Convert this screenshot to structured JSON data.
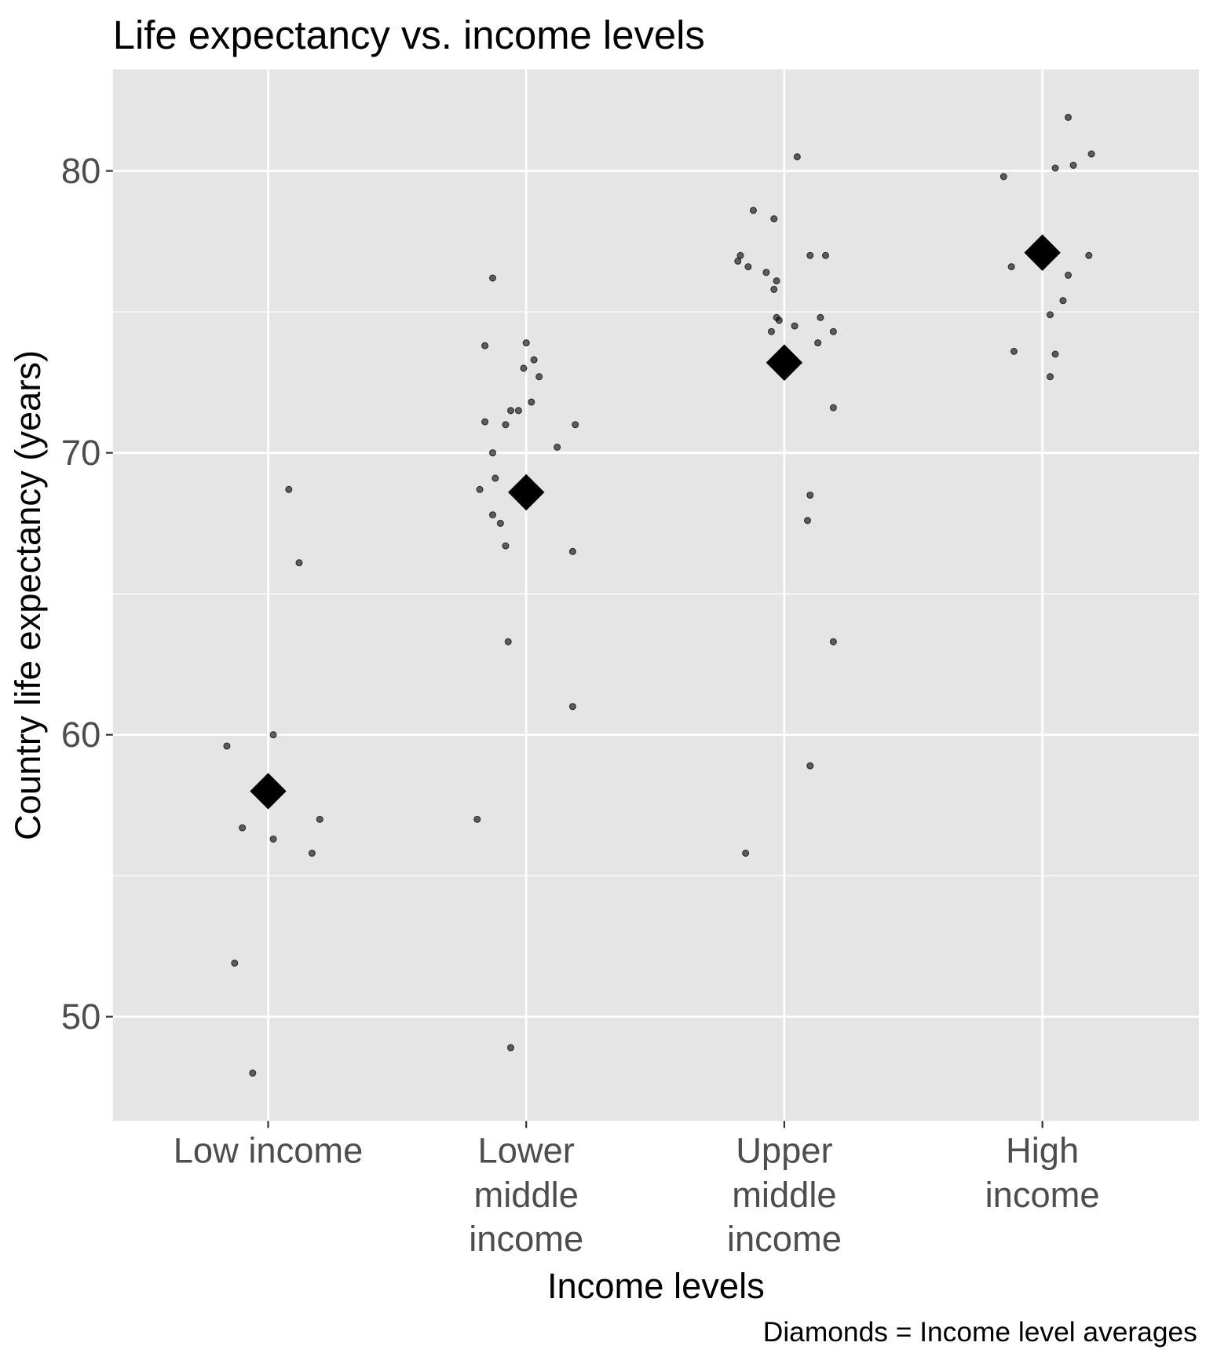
{
  "chart_data": {
    "type": "scatter",
    "title": "Life expectancy vs. income levels",
    "xlabel": "Income levels",
    "ylabel": "Country life expectancy (years)",
    "caption": "Diamonds = Income level averages",
    "categories": [
      {
        "lines": [
          "Low income"
        ]
      },
      {
        "lines": [
          "Lower",
          "middle",
          "income"
        ]
      },
      {
        "lines": [
          "Upper",
          "middle",
          "income"
        ]
      },
      {
        "lines": [
          "High",
          "income"
        ]
      }
    ],
    "ylim": [
      46.3,
      83.6
    ],
    "yticks": [
      50,
      60,
      70,
      80
    ],
    "yminor": [
      55,
      65,
      75
    ],
    "grid": true,
    "colors": {
      "panel": "#e5e5e5",
      "grid": "#ffffff",
      "point": "#000000"
    },
    "points": [
      {
        "cat": 0,
        "jitter": -0.16,
        "y": 59.6
      },
      {
        "cat": 0,
        "jitter": 0.02,
        "y": 60.0
      },
      {
        "cat": 0,
        "jitter": -0.1,
        "y": 56.7
      },
      {
        "cat": 0,
        "jitter": 0.02,
        "y": 56.3
      },
      {
        "cat": 0,
        "jitter": 0.2,
        "y": 57.0
      },
      {
        "cat": 0,
        "jitter": 0.17,
        "y": 55.8
      },
      {
        "cat": 0,
        "jitter": 0.08,
        "y": 68.7
      },
      {
        "cat": 0,
        "jitter": 0.12,
        "y": 66.1
      },
      {
        "cat": 0,
        "jitter": -0.13,
        "y": 51.9
      },
      {
        "cat": 0,
        "jitter": -0.06,
        "y": 48.0
      },
      {
        "cat": 1,
        "jitter": -0.13,
        "y": 76.2
      },
      {
        "cat": 1,
        "jitter": -0.16,
        "y": 73.8
      },
      {
        "cat": 1,
        "jitter": 0.0,
        "y": 73.9
      },
      {
        "cat": 1,
        "jitter": 0.03,
        "y": 73.3
      },
      {
        "cat": 1,
        "jitter": -0.01,
        "y": 73.0
      },
      {
        "cat": 1,
        "jitter": 0.05,
        "y": 72.7
      },
      {
        "cat": 1,
        "jitter": 0.02,
        "y": 71.8
      },
      {
        "cat": 1,
        "jitter": -0.06,
        "y": 71.5
      },
      {
        "cat": 1,
        "jitter": -0.03,
        "y": 71.5
      },
      {
        "cat": 1,
        "jitter": -0.16,
        "y": 71.1
      },
      {
        "cat": 1,
        "jitter": -0.08,
        "y": 71.0
      },
      {
        "cat": 1,
        "jitter": 0.19,
        "y": 71.0
      },
      {
        "cat": 1,
        "jitter": 0.12,
        "y": 70.2
      },
      {
        "cat": 1,
        "jitter": -0.13,
        "y": 70.0
      },
      {
        "cat": 1,
        "jitter": -0.12,
        "y": 69.1
      },
      {
        "cat": 1,
        "jitter": -0.18,
        "y": 68.7
      },
      {
        "cat": 1,
        "jitter": -0.13,
        "y": 67.8
      },
      {
        "cat": 1,
        "jitter": -0.1,
        "y": 67.5
      },
      {
        "cat": 1,
        "jitter": -0.08,
        "y": 66.7
      },
      {
        "cat": 1,
        "jitter": 0.18,
        "y": 66.5
      },
      {
        "cat": 1,
        "jitter": -0.07,
        "y": 63.3
      },
      {
        "cat": 1,
        "jitter": 0.18,
        "y": 61.0
      },
      {
        "cat": 1,
        "jitter": -0.19,
        "y": 57.0
      },
      {
        "cat": 1,
        "jitter": -0.06,
        "y": 48.9
      },
      {
        "cat": 2,
        "jitter": 0.05,
        "y": 80.5
      },
      {
        "cat": 2,
        "jitter": -0.12,
        "y": 78.6
      },
      {
        "cat": 2,
        "jitter": -0.04,
        "y": 78.3
      },
      {
        "cat": 2,
        "jitter": -0.17,
        "y": 77.0
      },
      {
        "cat": 2,
        "jitter": -0.18,
        "y": 76.8
      },
      {
        "cat": 2,
        "jitter": -0.14,
        "y": 76.6
      },
      {
        "cat": 2,
        "jitter": 0.1,
        "y": 77.0
      },
      {
        "cat": 2,
        "jitter": 0.16,
        "y": 77.0
      },
      {
        "cat": 2,
        "jitter": -0.07,
        "y": 76.4
      },
      {
        "cat": 2,
        "jitter": -0.03,
        "y": 76.1
      },
      {
        "cat": 2,
        "jitter": -0.04,
        "y": 75.8
      },
      {
        "cat": 2,
        "jitter": -0.03,
        "y": 74.8
      },
      {
        "cat": 2,
        "jitter": -0.02,
        "y": 74.7
      },
      {
        "cat": 2,
        "jitter": 0.14,
        "y": 74.8
      },
      {
        "cat": 2,
        "jitter": 0.04,
        "y": 74.5
      },
      {
        "cat": 2,
        "jitter": -0.05,
        "y": 74.3
      },
      {
        "cat": 2,
        "jitter": 0.19,
        "y": 74.3
      },
      {
        "cat": 2,
        "jitter": 0.13,
        "y": 73.9
      },
      {
        "cat": 2,
        "jitter": 0.19,
        "y": 71.6
      },
      {
        "cat": 2,
        "jitter": 0.1,
        "y": 68.5
      },
      {
        "cat": 2,
        "jitter": 0.09,
        "y": 67.6
      },
      {
        "cat": 2,
        "jitter": 0.19,
        "y": 63.3
      },
      {
        "cat": 2,
        "jitter": 0.1,
        "y": 58.9
      },
      {
        "cat": 2,
        "jitter": -0.15,
        "y": 55.8
      },
      {
        "cat": 3,
        "jitter": 0.1,
        "y": 81.9
      },
      {
        "cat": 3,
        "jitter": 0.19,
        "y": 80.6
      },
      {
        "cat": 3,
        "jitter": 0.12,
        "y": 80.2
      },
      {
        "cat": 3,
        "jitter": 0.05,
        "y": 80.1
      },
      {
        "cat": 3,
        "jitter": -0.15,
        "y": 79.8
      },
      {
        "cat": 3,
        "jitter": -0.05,
        "y": 77.1
      },
      {
        "cat": 3,
        "jitter": 0.18,
        "y": 77.0
      },
      {
        "cat": 3,
        "jitter": -0.12,
        "y": 76.6
      },
      {
        "cat": 3,
        "jitter": 0.1,
        "y": 76.3
      },
      {
        "cat": 3,
        "jitter": 0.08,
        "y": 75.4
      },
      {
        "cat": 3,
        "jitter": 0.03,
        "y": 74.9
      },
      {
        "cat": 3,
        "jitter": -0.11,
        "y": 73.6
      },
      {
        "cat": 3,
        "jitter": 0.05,
        "y": 73.5
      },
      {
        "cat": 3,
        "jitter": 0.03,
        "y": 72.7
      }
    ],
    "averages": [
      58.0,
      68.6,
      73.2,
      77.1
    ]
  }
}
